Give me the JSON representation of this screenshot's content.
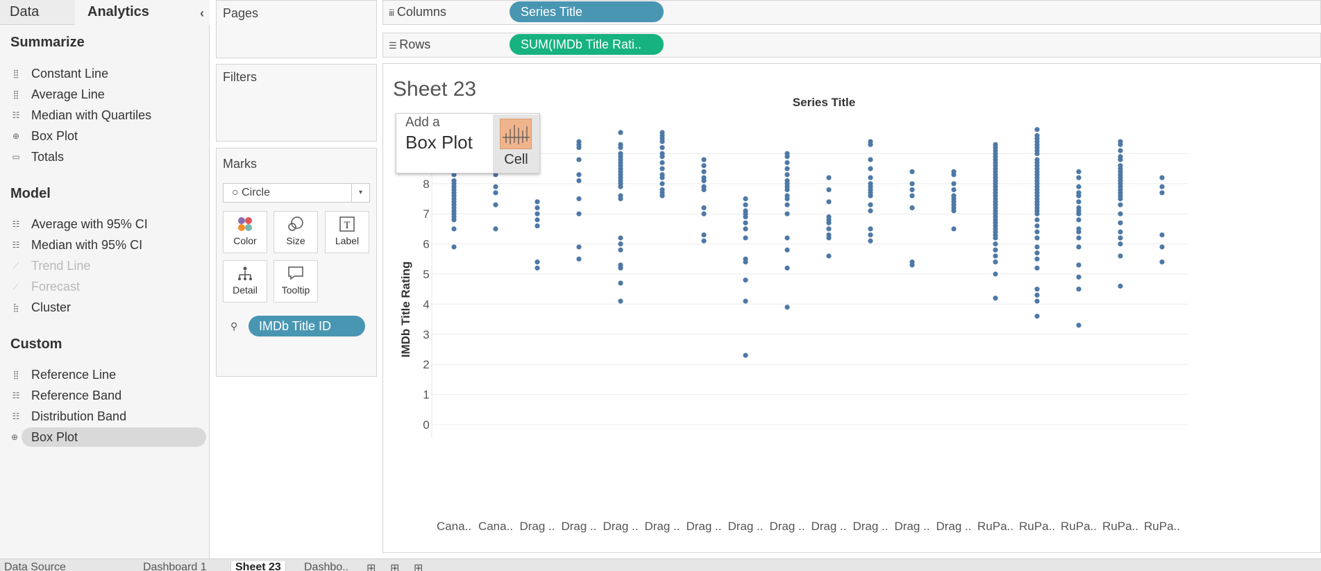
{
  "left_panel": {
    "tabs": [
      "Data",
      "Analytics"
    ],
    "collapse_icon": "‹",
    "sections": [
      {
        "title": "Summarize",
        "items": [
          {
            "label": "Constant Line",
            "icon": "constant-line-icon",
            "enabled": true
          },
          {
            "label": "Average Line",
            "icon": "average-line-icon",
            "enabled": true
          },
          {
            "label": "Median with Quartiles",
            "icon": "median-quartiles-icon",
            "enabled": true
          },
          {
            "label": "Box Plot",
            "icon": "box-plot-icon",
            "enabled": true
          },
          {
            "label": "Totals",
            "icon": "totals-icon",
            "enabled": true
          }
        ]
      },
      {
        "title": "Model",
        "items": [
          {
            "label": "Average with 95% CI",
            "icon": "average-ci-icon",
            "enabled": true
          },
          {
            "label": "Median with 95% CI",
            "icon": "median-ci-icon",
            "enabled": true
          },
          {
            "label": "Trend Line",
            "icon": "trend-line-icon",
            "enabled": false
          },
          {
            "label": "Forecast",
            "icon": "forecast-icon",
            "enabled": false
          },
          {
            "label": "Cluster",
            "icon": "cluster-icon",
            "enabled": true
          }
        ]
      },
      {
        "title": "Custom",
        "items": [
          {
            "label": "Reference Line",
            "icon": "reference-line-icon",
            "enabled": true
          },
          {
            "label": "Reference Band",
            "icon": "reference-band-icon",
            "enabled": true
          },
          {
            "label": "Distribution Band",
            "icon": "distribution-band-icon",
            "enabled": true
          },
          {
            "label": "Box Plot",
            "icon": "box-plot-icon",
            "enabled": true,
            "selected": true
          }
        ]
      }
    ]
  },
  "cards": {
    "pages": "Pages",
    "filters": "Filters",
    "marks": {
      "title": "Marks",
      "type": "Circle",
      "buttons": [
        "Color",
        "Size",
        "Label",
        "Detail",
        "Tooltip"
      ],
      "detail_pill": "IMDb Title ID"
    }
  },
  "shelves": {
    "columns": {
      "label": "Columns",
      "pill": "Series Title"
    },
    "rows": {
      "label": "Rows",
      "pill": "SUM(IMDb Title Rati.."
    }
  },
  "sheet": {
    "title": "Sheet 23"
  },
  "tooltip": {
    "line1": "Add a",
    "line2": "Box Plot",
    "cell": "Cell"
  },
  "colors": {
    "dot": "#4e79a7",
    "columns_pill": "#4996b2",
    "rows_pill": "#16b27f",
    "selected": "#d9d9d9"
  },
  "chart_data": {
    "type": "scatter",
    "title": "Series Title",
    "xlabel": "",
    "ylabel": "IMDb Title Rating",
    "ylim": [
      0,
      10
    ],
    "yticks": [
      0,
      1,
      2,
      3,
      4,
      5,
      6,
      7,
      8,
      9
    ],
    "grid": true,
    "categories": [
      "Cana..",
      "Cana..",
      "Drag ..",
      "Drag ..",
      "Drag ..",
      "Drag ..",
      "Drag ..",
      "Drag ..",
      "Drag ..",
      "Drag ..",
      "Drag ..",
      "Drag ..",
      "Drag ..",
      "RuPa..",
      "RuPa..",
      "RuPa..",
      "RuPa..",
      "RuPa.."
    ],
    "series": [
      {
        "values": [
          [
            8.8,
            8.6,
            8.3,
            8.1,
            8.0,
            7.9,
            7.8,
            7.7,
            7.6,
            7.5,
            7.4,
            7.3,
            7.2,
            7.1,
            7.0,
            6.9,
            6.8,
            6.5,
            5.9
          ]
        ]
      },
      {
        "values": [
          [
            8.3,
            7.9,
            7.7,
            7.3,
            6.5
          ]
        ]
      },
      {
        "values": [
          [
            7.4,
            7.2,
            7.0,
            6.8,
            6.6,
            5.4,
            5.2
          ]
        ]
      },
      {
        "values": [
          [
            9.4,
            9.3,
            9.2,
            8.8,
            8.3,
            8.1,
            7.5,
            7.0,
            5.9,
            5.5
          ]
        ]
      },
      {
        "values": [
          [
            9.7,
            9.3,
            9.2,
            9.0,
            8.9,
            8.8,
            8.7,
            8.6,
            8.5,
            8.4,
            8.3,
            8.2,
            8.1,
            8.0,
            7.9,
            7.6,
            7.5,
            6.2,
            6.0,
            5.8,
            5.3,
            5.2,
            4.7,
            4.1
          ]
        ]
      },
      {
        "values": [
          [
            9.7,
            9.6,
            9.5,
            9.4,
            9.2,
            9.0,
            8.9,
            8.7,
            8.5,
            8.3,
            8.2,
            8.0,
            7.8,
            7.7,
            7.6
          ]
        ]
      },
      {
        "values": [
          [
            8.8,
            8.6,
            8.4,
            8.2,
            8.1,
            7.9,
            7.8,
            7.2,
            7.0,
            6.3,
            6.1
          ]
        ]
      },
      {
        "values": [
          [
            7.5,
            7.3,
            7.1,
            7.0,
            6.9,
            6.7,
            6.5,
            6.2,
            5.5,
            5.4,
            4.8,
            4.1,
            2.3
          ]
        ]
      },
      {
        "values": [
          [
            9.0,
            8.9,
            8.7,
            8.5,
            8.3,
            8.1,
            8.0,
            7.9,
            7.8,
            7.6,
            7.5,
            7.3,
            7.0,
            6.2,
            5.8,
            5.2,
            3.9
          ]
        ]
      },
      {
        "values": [
          [
            8.2,
            7.8,
            7.4,
            6.9,
            6.8,
            6.7,
            6.5,
            6.3,
            6.2,
            5.6
          ]
        ]
      },
      {
        "values": [
          [
            9.4,
            9.3,
            8.8,
            8.5,
            8.2,
            8.0,
            7.9,
            7.8,
            7.7,
            7.6,
            7.3,
            7.1,
            6.5,
            6.3,
            6.1
          ]
        ]
      },
      {
        "values": [
          [
            8.4,
            8.0,
            7.8,
            7.6,
            7.2,
            5.4,
            5.3
          ]
        ]
      },
      {
        "values": [
          [
            8.4,
            8.3,
            8.0,
            7.8,
            7.6,
            7.5,
            7.4,
            7.3,
            7.2,
            7.1,
            6.5
          ]
        ]
      },
      {
        "values": [
          [
            9.3,
            9.2,
            9.1,
            9.0,
            8.9,
            8.8,
            8.7,
            8.6,
            8.5,
            8.4,
            8.3,
            8.2,
            8.1,
            8.0,
            7.9,
            7.8,
            7.7,
            7.6,
            7.5,
            7.4,
            7.3,
            7.2,
            7.1,
            7.0,
            6.9,
            6.8,
            6.7,
            6.6,
            6.5,
            6.4,
            6.3,
            6.2,
            6.0,
            5.8,
            5.6,
            5.4,
            5.0,
            4.2
          ]
        ]
      },
      {
        "values": [
          [
            9.8,
            9.6,
            9.5,
            9.4,
            9.3,
            9.2,
            9.1,
            9.0,
            8.8,
            8.7,
            8.6,
            8.5,
            8.4,
            8.3,
            8.2,
            8.1,
            8.0,
            7.9,
            7.8,
            7.7,
            7.6,
            7.5,
            7.4,
            7.3,
            7.2,
            7.1,
            7.0,
            6.8,
            6.6,
            6.4,
            6.2,
            5.9,
            5.7,
            5.5,
            5.2,
            4.5,
            4.3,
            4.1,
            3.6
          ]
        ]
      },
      {
        "values": [
          [
            8.4,
            8.2,
            7.9,
            7.7,
            7.6,
            7.4,
            7.2,
            7.1,
            7.0,
            6.8,
            6.5,
            6.4,
            6.2,
            5.9,
            5.3,
            4.9,
            4.5,
            3.3
          ]
        ]
      },
      {
        "values": [
          [
            9.4,
            9.3,
            9.1,
            8.9,
            8.8,
            8.6,
            8.5,
            8.4,
            8.3,
            8.2,
            8.1,
            8.0,
            7.9,
            7.8,
            7.7,
            7.6,
            7.5,
            7.3,
            7.0,
            6.7,
            6.4,
            6.2,
            6.0,
            5.6,
            4.6
          ]
        ]
      },
      {
        "values": [
          [
            8.2,
            7.9,
            7.7,
            6.3,
            5.9,
            5.4
          ]
        ]
      }
    ]
  },
  "bottom_tabs": [
    "Data Source",
    "Dashboard 1",
    "Sheet 23",
    "Dashbo.."
  ],
  "bottom_icons": [
    "new-worksheet-icon",
    "new-dashboard-icon",
    "new-story-icon"
  ]
}
